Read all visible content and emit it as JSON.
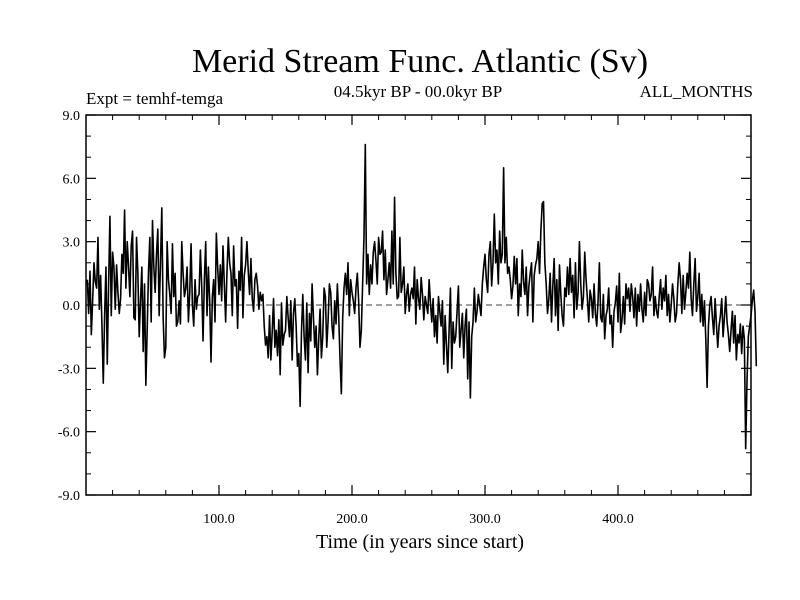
{
  "chart_data": {
    "type": "line",
    "title": "Merid Stream Func. Atlantic (Sv)",
    "subtitle_left": "Expt = temhf-temga",
    "subtitle_center": "04.5kyr BP - 00.0kyr BP",
    "subtitle_right": "ALL_MONTHS",
    "xlabel": "Time (in years since start)",
    "ylabel": "",
    "xlim": [
      0,
      500
    ],
    "ylim": [
      -9,
      9
    ],
    "x_ticks": [
      100,
      200,
      300,
      400
    ],
    "x_tick_labels": [
      "100.0",
      "200.0",
      "300.0",
      "400.0"
    ],
    "y_ticks": [
      9,
      6,
      3,
      0,
      -3,
      -6,
      -9
    ],
    "y_tick_labels": [
      "9.0",
      "6.0",
      "3.0",
      "0.0",
      "-3.0",
      "-6.0",
      "-9.0"
    ],
    "reference_line": 0,
    "series": [
      {
        "name": "Merid Stream Func. Atlantic",
        "x_start": 1,
        "x_step": 1,
        "values": [
          1.2,
          -0.4,
          1.6,
          -1.4,
          0.2,
          2.0,
          1.1,
          0.8,
          3.2,
          -0.2,
          1.4,
          -1.0,
          -3.7,
          -0.5,
          1.8,
          -2.8,
          1.0,
          4.2,
          -0.5,
          2.5,
          1.8,
          -0.2,
          1.9,
          0.6,
          -0.4,
          0.3,
          2.4,
          1.5,
          4.5,
          0.8,
          3.0,
          1.8,
          0.4,
          2.8,
          3.5,
          -0.6,
          -0.7,
          3.2,
          1.5,
          -1.5,
          0.2,
          1.8,
          -2.2,
          1.0,
          -3.8,
          -1.2,
          1.6,
          3.2,
          -0.8,
          4.0,
          1.8,
          0.6,
          2.4,
          3.6,
          -0.5,
          2.0,
          4.6,
          -0.6,
          -2.5,
          -2.0,
          3.0,
          1.2,
          0.5,
          -0.4,
          2.9,
          0.4,
          1.5,
          -1.0,
          -0.8,
          0.2,
          -0.9,
          3.0,
          1.5,
          0.4,
          0.8,
          1.8,
          -0.8,
          0.6,
          2.9,
          0.0,
          -1.0,
          1.2,
          -0.2,
          0.4,
          0.5,
          2.6,
          0.9,
          -1.7,
          1.2,
          3.0,
          -0.5,
          1.8,
          0.2,
          -2.7,
          0.4,
          1.2,
          -0.8,
          3.4,
          1.8,
          0.5,
          1.9,
          0.2,
          2.8,
          1.0,
          -0.8,
          1.6,
          3.2,
          2.0,
          1.5,
          -0.5,
          2.8,
          0.9,
          1.2,
          -1.1,
          1.6,
          0.7,
          3.2,
          -0.6,
          1.4,
          1.9,
          3.0,
          1.6,
          0.5,
          2.2,
          0.3,
          -0.3,
          1.2,
          1.5,
          0.9,
          -0.2,
          0.6,
          0.2,
          0.5,
          -1.0,
          -1.9,
          -1.5,
          -2.5,
          -0.5,
          -2.6,
          -1.3,
          0.3,
          -2.0,
          -1.2,
          -2.4,
          -0.7,
          -3.3,
          0.1,
          -1.9,
          -1.4,
          -1.2,
          0.4,
          -0.6,
          -1.5,
          0.2,
          -2.6,
          -0.4,
          0.3,
          -1.0,
          -2.9,
          -2.3,
          -4.8,
          -1.3,
          0.5,
          -1.5,
          -2.6,
          0.1,
          -3.2,
          -0.4,
          -1.7,
          1.0,
          -0.6,
          -2.0,
          -1.0,
          -3.3,
          -1.6,
          -0.2,
          -2.5,
          -1.5,
          0.8,
          0.4,
          -2.0,
          -0.8,
          1.0,
          0.6,
          -1.0,
          -1.6,
          0.2,
          -0.9,
          1.0,
          -0.5,
          -2.6,
          -4.2,
          -0.6,
          0.8,
          1.5,
          0.5,
          2.0,
          -0.5,
          1.2,
          0.6,
          0.2,
          -0.4,
          0.8,
          1.5,
          0.2,
          -2.0,
          -1.2,
          1.0,
          3.2,
          7.6,
          1.0,
          2.4,
          0.5,
          1.9,
          1.0,
          2.5,
          3.0,
          2.1,
          1.0,
          3.2,
          2.4,
          2.5,
          3.5,
          1.2,
          2.6,
          0.5,
          1.2,
          2.0,
          0.8,
          3.5,
          1.0,
          5.1,
          1.5,
          0.3,
          0.4,
          3.2,
          0.6,
          1.0,
          1.8,
          -0.4,
          0.5,
          1.0,
          -0.3,
          0.5,
          0.8,
          0.3,
          1.8,
          -0.9,
          1.2,
          0.3,
          -0.2,
          1.3,
          0.5,
          -0.7,
          0.4,
          0.0,
          -0.4,
          1.2,
          0.1,
          -0.8,
          0.3,
          -1.5,
          -0.5,
          -1.8,
          0.4,
          -0.3,
          -1.0,
          0.2,
          -2.8,
          -0.5,
          -1.9,
          -3.2,
          -1.2,
          0.8,
          -3.0,
          -0.8,
          -1.8,
          -1.5,
          -0.3,
          0.9,
          -2.0,
          -1.2,
          -0.4,
          -2.5,
          -1.0,
          -0.2,
          -3.5,
          -0.8,
          -4.4,
          -1.5,
          -0.8,
          0.8,
          -0.8,
          -0.3,
          0.5,
          0.0,
          -0.5,
          1.0,
          1.8,
          2.4,
          1.2,
          0.6,
          2.4,
          3.0,
          0.9,
          2.0,
          4.3,
          2.0,
          2.6,
          1.0,
          3.5,
          2.0,
          2.4,
          6.5,
          2.0,
          3.2,
          1.5,
          1.8,
          1.2,
          0.3,
          0.9,
          2.3,
          1.0,
          2.2,
          -0.5,
          1.0,
          0.4,
          2.6,
          1.1,
          0.5,
          1.8,
          -0.5,
          0.9,
          1.5,
          2.0,
          -0.8,
          1.4,
          1.9,
          2.2,
          3.0,
          1.5,
          3.5,
          4.8,
          4.9,
          2.0,
          1.0,
          -0.4,
          0.3,
          1.5,
          -0.8,
          0.9,
          2.2,
          -0.5,
          1.2,
          -1.2,
          1.9,
          0.5,
          -0.5,
          -1.0,
          0.8,
          0.4,
          1.8,
          0.5,
          2.2,
          0.6,
          1.4,
          -0.6,
          2.0,
          -0.2,
          0.6,
          3.0,
          1.0,
          -0.2,
          0.4,
          2.5,
          1.2,
          0.3,
          -0.8,
          0.7,
          0.3,
          -0.6,
          1.0,
          -0.4,
          -1.0,
          0.2,
          2.0,
          -0.6,
          -0.8,
          0.5,
          -1.6,
          -0.5,
          -0.2,
          0.8,
          -0.9,
          -0.5,
          -2.0,
          -0.3,
          0.1,
          0.9,
          -0.8,
          1.5,
          -1.3,
          -0.7,
          0.4,
          -0.9,
          1.0,
          0.3,
          0.8,
          -0.3,
          1.0,
          0.4,
          -0.6,
          0.8,
          -1.0,
          0.5,
          -0.3,
          1.0,
          -0.2,
          -0.8,
          0.6,
          -0.5,
          1.2,
          1.0,
          0.2,
          0.5,
          1.8,
          -0.5,
          0.4,
          -0.3,
          -0.6,
          0.4,
          1.2,
          -0.2,
          0.8,
          0.2,
          1.4,
          -0.5,
          0.5,
          -0.8,
          0.0,
          1.0,
          0.3,
          -0.8,
          -0.4,
          1.0,
          2.0,
          1.2,
          -0.4,
          1.4,
          -0.2,
          0.6,
          1.5,
          0.8,
          2.5,
          0.3,
          -0.5,
          1.0,
          2.2,
          -0.3,
          0.4,
          1.5,
          -0.8,
          0.5,
          -1.0,
          0.2,
          -1.6,
          -3.9,
          -1.0,
          0.0,
          0.4,
          -0.6,
          -1.4,
          0.3,
          -0.9,
          -2.0,
          -1.0,
          -0.5,
          0.3,
          -1.5,
          -0.6,
          0.4,
          -0.8,
          -1.4,
          -2.2,
          -1.2,
          -0.3,
          -1.8,
          -0.5,
          -2.6,
          -1.4,
          -1.8,
          -0.9,
          -2.3,
          -1.0,
          -1.6,
          -6.8,
          -3.6,
          -1.5,
          -1.0,
          -0.5,
          0.2,
          0.7,
          -0.3,
          -2.9
        ]
      }
    ]
  }
}
